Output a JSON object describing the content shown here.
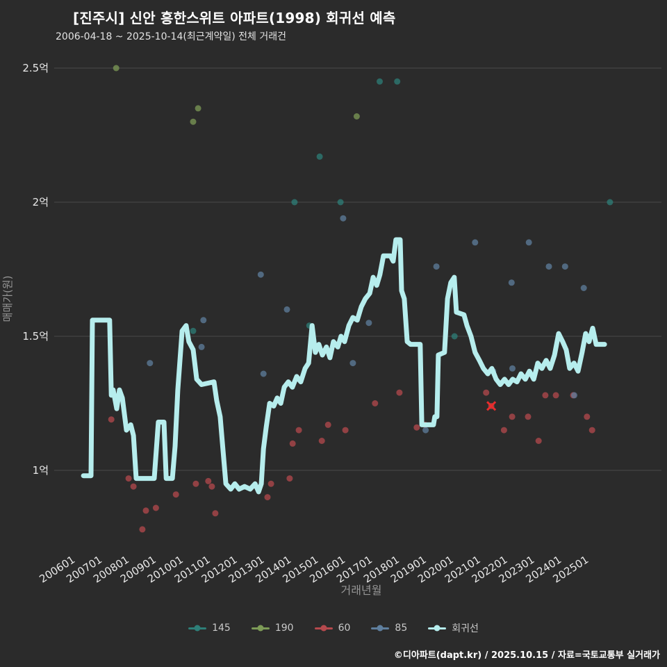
{
  "header": {
    "title": "[진주시] 신안 흥한스위트 아파트(1998) 회귀선 예측",
    "subtitle": "2006-04-18 ~ 2025-10-14(최근계약일) 전체 거래건"
  },
  "footer": {
    "credit": "©디아파트(dapt.kr) / 2025.10.15 / 자료=국토교통부 실거래가"
  },
  "colors": {
    "background": "#2b2b2b",
    "grid": "#4a4a4a",
    "tick_label": "#e8e8e8",
    "axis_title": "#969696",
    "highlight": "#e82c2c"
  },
  "chart_data": {
    "type": "scatter",
    "title": "[진주시] 신안 흥한스위트 아파트(1998) 회귀선 예측",
    "subtitle": "2006-04-18 ~ 2025-10-14(최근계약일) 전체 거래건",
    "xlabel": "거래년월",
    "ylabel": "매매가(원)",
    "x_range": [
      2005.5,
      2026.5
    ],
    "y_range": [
      0.7,
      2.6
    ],
    "grid": true,
    "legend_position": "bottom",
    "y_ticks": [
      {
        "value": 2.5,
        "label": "2.5억"
      },
      {
        "value": 2.0,
        "label": "2억"
      },
      {
        "value": 1.5,
        "label": "1.5억"
      },
      {
        "value": 1.0,
        "label": "1억"
      }
    ],
    "x_ticks": [
      {
        "x": 2006,
        "label": "200601"
      },
      {
        "x": 2007,
        "label": "200701"
      },
      {
        "x": 2008,
        "label": "200801"
      },
      {
        "x": 2009,
        "label": "200901"
      },
      {
        "x": 2010,
        "label": "201001"
      },
      {
        "x": 2011,
        "label": "201101"
      },
      {
        "x": 2012,
        "label": "201201"
      },
      {
        "x": 2013,
        "label": "201301"
      },
      {
        "x": 2014,
        "label": "201401"
      },
      {
        "x": 2015,
        "label": "201501"
      },
      {
        "x": 2016,
        "label": "201601"
      },
      {
        "x": 2017,
        "label": "201701"
      },
      {
        "x": 2018,
        "label": "201801"
      },
      {
        "x": 2019,
        "label": "201901"
      },
      {
        "x": 2020,
        "label": "202001"
      },
      {
        "x": 2021,
        "label": "202101"
      },
      {
        "x": 2022,
        "label": "202201"
      },
      {
        "x": 2023,
        "label": "202301"
      },
      {
        "x": 2024,
        "label": "202401"
      },
      {
        "x": 2025,
        "label": "202501"
      }
    ],
    "series": [
      {
        "name": "145",
        "type": "scatter",
        "color": "#2e7f78",
        "points": [
          [
            2017.4,
            2.45
          ],
          [
            2018.05,
            2.45
          ],
          [
            2015.18,
            2.17
          ],
          [
            2014.25,
            2.0
          ],
          [
            2015.95,
            2.0
          ],
          [
            2025.92,
            2.0
          ],
          [
            2014.8,
            1.54
          ],
          [
            2020.17,
            1.5
          ],
          [
            2010.5,
            1.52
          ]
        ]
      },
      {
        "name": "190",
        "type": "scatter",
        "color": "#7d9b57",
        "points": [
          [
            2007.65,
            2.5
          ],
          [
            2010.5,
            2.3
          ],
          [
            2010.68,
            2.35
          ],
          [
            2016.55,
            2.32
          ]
        ]
      },
      {
        "name": "60",
        "type": "scatter",
        "color": "#b5494d",
        "points": [
          [
            2007.47,
            1.19
          ],
          [
            2008.11,
            0.97
          ],
          [
            2008.29,
            0.94
          ],
          [
            2008.62,
            0.78
          ],
          [
            2008.75,
            0.85
          ],
          [
            2009.12,
            0.86
          ],
          [
            2009.86,
            0.91
          ],
          [
            2010.6,
            0.95
          ],
          [
            2011.06,
            0.96
          ],
          [
            2011.19,
            0.94
          ],
          [
            2011.32,
            0.84
          ],
          [
            2013.25,
            0.9
          ],
          [
            2013.38,
            0.95
          ],
          [
            2014.07,
            0.97
          ],
          [
            2014.18,
            1.1
          ],
          [
            2014.41,
            1.15
          ],
          [
            2015.26,
            1.11
          ],
          [
            2015.49,
            1.17
          ],
          [
            2016.13,
            1.15
          ],
          [
            2017.23,
            1.25
          ],
          [
            2018.13,
            1.29
          ],
          [
            2018.77,
            1.16
          ],
          [
            2019.08,
            1.17
          ],
          [
            2021.34,
            1.29
          ],
          [
            2021.53,
            1.24
          ],
          [
            2022.0,
            1.15
          ],
          [
            2022.3,
            1.2
          ],
          [
            2022.89,
            1.2
          ],
          [
            2023.28,
            1.11
          ],
          [
            2023.53,
            1.28
          ],
          [
            2023.92,
            1.28
          ],
          [
            2024.56,
            1.28
          ],
          [
            2025.07,
            1.2
          ],
          [
            2025.26,
            1.15
          ]
        ]
      },
      {
        "name": "85",
        "type": "scatter",
        "color": "#5f7f9e",
        "points": [
          [
            2016.05,
            1.94
          ],
          [
            2020.93,
            1.85
          ],
          [
            2022.92,
            1.85
          ],
          [
            2019.5,
            1.76
          ],
          [
            2023.66,
            1.76
          ],
          [
            2024.26,
            1.76
          ],
          [
            2022.28,
            1.7
          ],
          [
            2024.95,
            1.68
          ],
          [
            2013.0,
            1.73
          ],
          [
            2013.97,
            1.6
          ],
          [
            2010.88,
            1.56
          ],
          [
            2010.81,
            1.46
          ],
          [
            2008.9,
            1.4
          ],
          [
            2016.41,
            1.4
          ],
          [
            2013.1,
            1.36
          ],
          [
            2022.31,
            1.38
          ],
          [
            2017.0,
            1.55
          ],
          [
            2021.6,
            1.37
          ],
          [
            2019.1,
            1.15
          ],
          [
            2024.6,
            1.28
          ]
        ]
      },
      {
        "name": "회귀선",
        "type": "line",
        "color": "#b6eded",
        "points": [
          [
            2006.44,
            0.98
          ],
          [
            2006.72,
            0.98
          ],
          [
            2006.77,
            1.56
          ],
          [
            2007.41,
            1.56
          ],
          [
            2007.47,
            1.28
          ],
          [
            2007.54,
            1.3
          ],
          [
            2007.67,
            1.23
          ],
          [
            2007.77,
            1.3
          ],
          [
            2007.88,
            1.27
          ],
          [
            2008.03,
            1.15
          ],
          [
            2008.19,
            1.17
          ],
          [
            2008.29,
            1.13
          ],
          [
            2008.39,
            0.97
          ],
          [
            2009.06,
            0.97
          ],
          [
            2009.21,
            1.18
          ],
          [
            2009.42,
            1.18
          ],
          [
            2009.5,
            0.97
          ],
          [
            2009.73,
            0.97
          ],
          [
            2009.83,
            1.09
          ],
          [
            2009.93,
            1.3
          ],
          [
            2010.09,
            1.52
          ],
          [
            2010.24,
            1.54
          ],
          [
            2010.34,
            1.48
          ],
          [
            2010.5,
            1.45
          ],
          [
            2010.63,
            1.34
          ],
          [
            2010.81,
            1.32
          ],
          [
            2011.27,
            1.33
          ],
          [
            2011.37,
            1.26
          ],
          [
            2011.5,
            1.2
          ],
          [
            2011.6,
            1.08
          ],
          [
            2011.71,
            0.95
          ],
          [
            2011.89,
            0.93
          ],
          [
            2012.04,
            0.95
          ],
          [
            2012.2,
            0.93
          ],
          [
            2012.4,
            0.94
          ],
          [
            2012.61,
            0.93
          ],
          [
            2012.79,
            0.95
          ],
          [
            2012.92,
            0.92
          ],
          [
            2013.02,
            0.95
          ],
          [
            2013.1,
            1.08
          ],
          [
            2013.2,
            1.16
          ],
          [
            2013.33,
            1.25
          ],
          [
            2013.48,
            1.24
          ],
          [
            2013.61,
            1.27
          ],
          [
            2013.74,
            1.25
          ],
          [
            2013.87,
            1.31
          ],
          [
            2014.02,
            1.33
          ],
          [
            2014.17,
            1.31
          ],
          [
            2014.33,
            1.35
          ],
          [
            2014.48,
            1.33
          ],
          [
            2014.64,
            1.38
          ],
          [
            2014.77,
            1.4
          ],
          [
            2014.9,
            1.54
          ],
          [
            2015.02,
            1.44
          ],
          [
            2015.15,
            1.47
          ],
          [
            2015.28,
            1.43
          ],
          [
            2015.43,
            1.46
          ],
          [
            2015.56,
            1.42
          ],
          [
            2015.69,
            1.48
          ],
          [
            2015.85,
            1.46
          ],
          [
            2015.97,
            1.5
          ],
          [
            2016.1,
            1.48
          ],
          [
            2016.26,
            1.54
          ],
          [
            2016.41,
            1.57
          ],
          [
            2016.57,
            1.56
          ],
          [
            2016.72,
            1.61
          ],
          [
            2016.87,
            1.64
          ],
          [
            2017.03,
            1.66
          ],
          [
            2017.16,
            1.72
          ],
          [
            2017.29,
            1.69
          ],
          [
            2017.41,
            1.73
          ],
          [
            2017.54,
            1.8
          ],
          [
            2017.8,
            1.8
          ],
          [
            2017.9,
            1.78
          ],
          [
            2018.0,
            1.86
          ],
          [
            2018.16,
            1.86
          ],
          [
            2018.21,
            1.67
          ],
          [
            2018.31,
            1.64
          ],
          [
            2018.42,
            1.48
          ],
          [
            2018.54,
            1.47
          ],
          [
            2018.9,
            1.47
          ],
          [
            2018.96,
            1.17
          ],
          [
            2019.39,
            1.17
          ],
          [
            2019.44,
            1.2
          ],
          [
            2019.52,
            1.2
          ],
          [
            2019.57,
            1.43
          ],
          [
            2019.8,
            1.44
          ],
          [
            2019.91,
            1.64
          ],
          [
            2020.03,
            1.7
          ],
          [
            2020.16,
            1.72
          ],
          [
            2020.24,
            1.59
          ],
          [
            2020.52,
            1.58
          ],
          [
            2020.63,
            1.54
          ],
          [
            2020.78,
            1.5
          ],
          [
            2020.93,
            1.44
          ],
          [
            2021.09,
            1.41
          ],
          [
            2021.24,
            1.38
          ],
          [
            2021.4,
            1.36
          ],
          [
            2021.55,
            1.38
          ],
          [
            2021.71,
            1.34
          ],
          [
            2021.86,
            1.32
          ],
          [
            2022.02,
            1.34
          ],
          [
            2022.17,
            1.32
          ],
          [
            2022.32,
            1.34
          ],
          [
            2022.48,
            1.33
          ],
          [
            2022.63,
            1.36
          ],
          [
            2022.79,
            1.34
          ],
          [
            2022.94,
            1.37
          ],
          [
            2023.1,
            1.34
          ],
          [
            2023.25,
            1.4
          ],
          [
            2023.4,
            1.38
          ],
          [
            2023.56,
            1.41
          ],
          [
            2023.71,
            1.38
          ],
          [
            2023.87,
            1.43
          ],
          [
            2024.02,
            1.51
          ],
          [
            2024.17,
            1.48
          ],
          [
            2024.3,
            1.45
          ],
          [
            2024.43,
            1.38
          ],
          [
            2024.59,
            1.4
          ],
          [
            2024.74,
            1.37
          ],
          [
            2024.89,
            1.44
          ],
          [
            2025.02,
            1.51
          ],
          [
            2025.15,
            1.48
          ],
          [
            2025.28,
            1.53
          ],
          [
            2025.41,
            1.47
          ],
          [
            2025.72,
            1.47
          ]
        ]
      }
    ],
    "highlight_marker": {
      "series": "60",
      "x": 2021.53,
      "y": 1.24,
      "color": "#e82c2c"
    }
  }
}
